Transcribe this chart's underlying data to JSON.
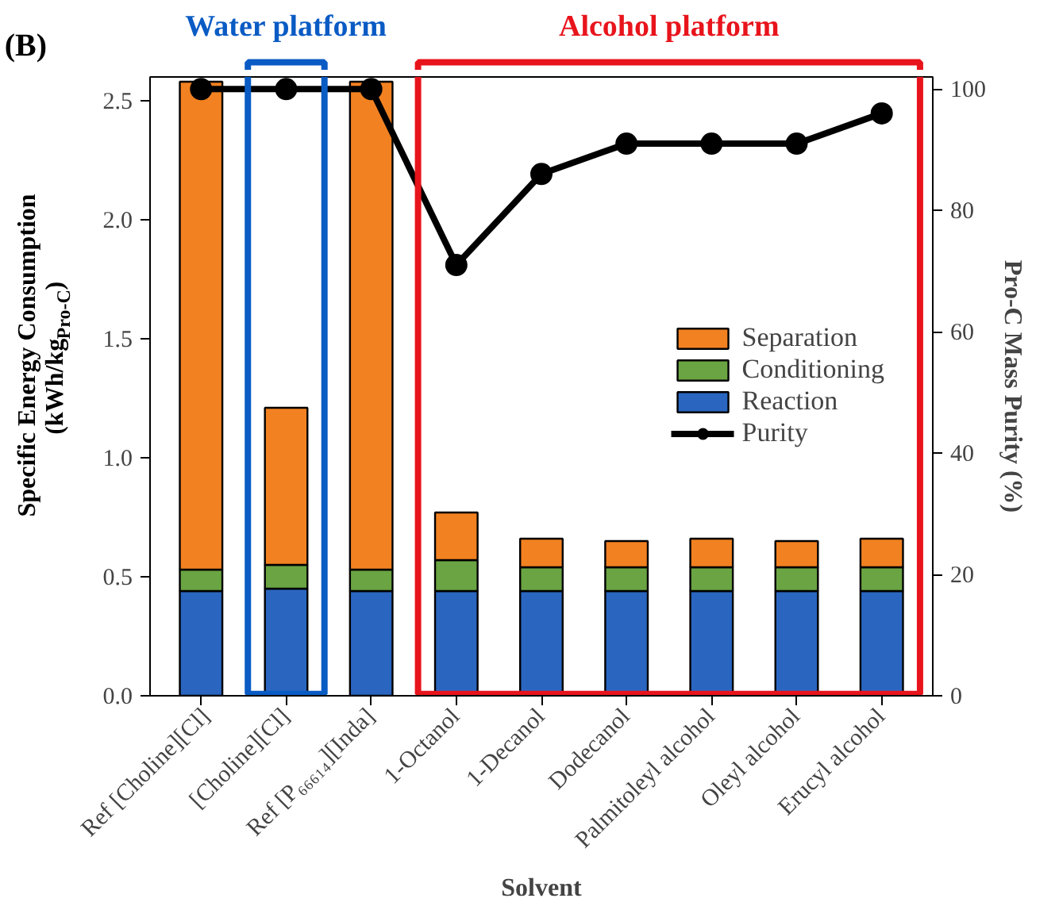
{
  "chart_data": {
    "type": "bar",
    "title": "(B)",
    "xlabel": "Solvent",
    "ylabel": "Specific Energy Consumption (kWh/kg$_{Pro-C}$)",
    "y2label": "Pro-C Mass Purity (%)",
    "categories": [
      "Ref [Choline][Cl]",
      "[Choline][Cl]",
      "Ref [P₆₆₆₁₄][Inda]",
      "1-Octanol",
      "1-Decanol",
      "Dodecanol",
      "Palmitoleyl alcohol",
      "Oleyl alcohol",
      "Erucyl alcohol"
    ],
    "stacked": true,
    "series": [
      {
        "name": "Reaction",
        "color": "#2a66c0",
        "values": [
          0.44,
          0.45,
          0.44,
          0.44,
          0.44,
          0.44,
          0.44,
          0.44,
          0.44
        ]
      },
      {
        "name": "Conditioning",
        "color": "#6aa443",
        "values": [
          0.09,
          0.1,
          0.09,
          0.13,
          0.1,
          0.1,
          0.1,
          0.1,
          0.1
        ]
      },
      {
        "name": "Separation",
        "color": "#f28121",
        "values": [
          2.05,
          0.66,
          2.05,
          0.2,
          0.12,
          0.11,
          0.12,
          0.11,
          0.12
        ]
      },
      {
        "name": "Purity",
        "type": "line",
        "axis": "y2",
        "color": "#000000",
        "values": [
          100,
          100,
          100,
          71,
          86,
          91,
          91,
          91,
          96
        ]
      }
    ],
    "ylim": [
      0,
      2.6
    ],
    "yticks": [
      {
        "value": 0,
        "label": "0.0"
      },
      {
        "value": 0.5,
        "label": "0.5"
      },
      {
        "value": 1,
        "label": "1.0"
      },
      {
        "value": 1.5,
        "label": "1.5"
      },
      {
        "value": 2,
        "label": "2.0"
      },
      {
        "value": 2.5,
        "label": "2.5"
      }
    ],
    "y2lim": [
      0,
      102
    ],
    "y2ticks": [
      0,
      20,
      40,
      60,
      80,
      100
    ],
    "annotations": [
      "Water platform",
      "Alcohol platform"
    ],
    "legend": "right",
    "marker": "circle",
    "grid": false
  }
}
